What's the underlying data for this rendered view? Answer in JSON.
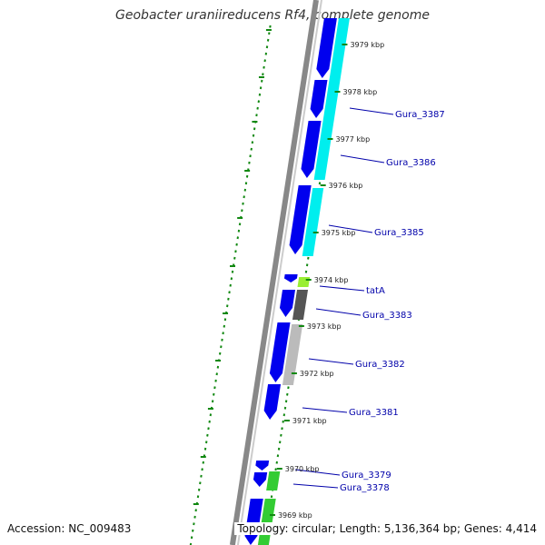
{
  "title": "Geobacter uraniireducens Rf4, complete genome",
  "footer": {
    "accession": "Accession: NC_009483",
    "topology": "Topology: circular; Length: 5,136,364 bp; Genes: 4,414"
  },
  "colors": {
    "backbone": "#888888",
    "cds_forward": "#0000ee",
    "cyan_track": "#00eeee",
    "green_track": "#33cc33",
    "lime_track": "#99ee33",
    "dark_gray_track": "#555555",
    "light_gray_track": "#bbbbbb",
    "tick_green": "#118811",
    "label_blue": "#0000aa"
  },
  "kbp_labels": [
    "3979 kbp",
    "3978 kbp",
    "3977 kbp",
    "3976 kbp",
    "3975 kbp",
    "3974 kbp",
    "3973 kbp",
    "3972 kbp",
    "3971 kbp",
    "3970 kbp",
    "3969 kbp"
  ],
  "gene_labels": [
    "Gura_3387",
    "Gura_3386",
    "Gura_3385",
    "tatA",
    "Gura_3383",
    "Gura_3382",
    "Gura_3381",
    "Gura_3379",
    "Gura_3378"
  ]
}
